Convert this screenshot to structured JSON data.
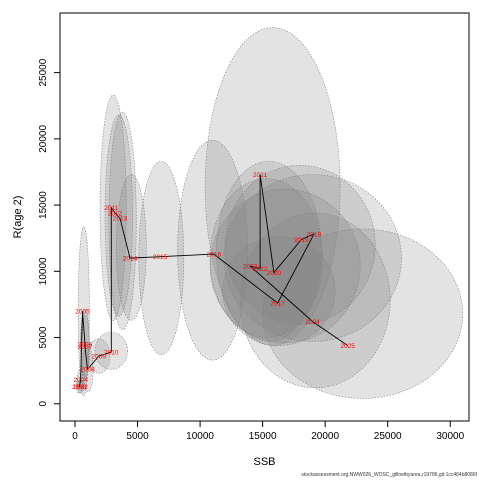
{
  "chart_data": {
    "type": "scatter",
    "xlabel": "SSB",
    "ylabel": "R(age 2)",
    "xlim": [
      -1200,
      31500
    ],
    "ylim": [
      -1300,
      29500
    ],
    "xticks": [
      0,
      5000,
      10000,
      15000,
      20000,
      25000,
      30000
    ],
    "yticks": [
      0,
      5000,
      10000,
      15000,
      20000,
      25000
    ],
    "grid": false,
    "legend": "none",
    "series": [
      {
        "points": [
          {
            "year": "2002",
            "x": 450,
            "y": 1300
          },
          {
            "year": "2003",
            "x": 350,
            "y": 1300
          },
          {
            "year": "2004",
            "x": 450,
            "y": 1800
          },
          {
            "year": "2005",
            "x": 600,
            "y": 7000
          },
          {
            "year": "2006",
            "x": 800,
            "y": 4500
          },
          {
            "year": "2007",
            "x": 800,
            "y": 4300
          },
          {
            "year": "2008",
            "x": 1000,
            "y": 2600
          },
          {
            "year": "2009",
            "x": 1900,
            "y": 3600
          },
          {
            "year": "2010",
            "x": 2900,
            "y": 3900
          },
          {
            "year": "2011",
            "x": 2900,
            "y": 14800
          },
          {
            "year": "2012",
            "x": 3200,
            "y": 14400
          },
          {
            "year": "2013",
            "x": 3600,
            "y": 14000
          },
          {
            "year": "2014",
            "x": 4400,
            "y": 11000
          },
          {
            "year": "2015",
            "x": 6800,
            "y": 11100
          },
          {
            "year": "2016",
            "x": 11100,
            "y": 11300
          },
          {
            "year": "2017",
            "x": 16200,
            "y": 7600
          },
          {
            "year": "2018",
            "x": 19100,
            "y": 12800
          },
          {
            "year": "2019",
            "x": 18100,
            "y": 12400
          },
          {
            "year": "2020",
            "x": 15900,
            "y": 9900
          },
          {
            "year": "2021",
            "x": 14800,
            "y": 17300
          },
          {
            "year": "2022",
            "x": 14800,
            "y": 10200
          },
          {
            "year": "2023",
            "x": 14000,
            "y": 10400
          },
          {
            "year": "2024",
            "x": 19000,
            "y": 6200
          },
          {
            "year": "2025",
            "x": 21800,
            "y": 4400
          }
        ]
      }
    ],
    "ellipses": [
      {
        "year": "2002",
        "cx": 450,
        "cy": 1300,
        "rx": 250,
        "ry": 500
      },
      {
        "year": "2003",
        "cx": 350,
        "cy": 1300,
        "rx": 250,
        "ry": 500
      },
      {
        "year": "2004",
        "cx": 450,
        "cy": 1800,
        "rx": 300,
        "ry": 800
      },
      {
        "year": "2005",
        "cx": 700,
        "cy": 7000,
        "rx": 450,
        "ry": 6400
      },
      {
        "year": "2006",
        "cx": 800,
        "cy": 4500,
        "rx": 350,
        "ry": 2600
      },
      {
        "year": "2007",
        "cx": 800,
        "cy": 4300,
        "rx": 350,
        "ry": 2400
      },
      {
        "year": "2008",
        "cx": 1000,
        "cy": 2600,
        "rx": 450,
        "ry": 1700
      },
      {
        "year": "2009",
        "cx": 1900,
        "cy": 3600,
        "rx": 900,
        "ry": 1300
      },
      {
        "year": "2010",
        "cx": 2900,
        "cy": 4000,
        "rx": 1300,
        "ry": 1400
      },
      {
        "year": "2011",
        "cx": 3050,
        "cy": 14800,
        "rx": 1050,
        "ry": 8500
      },
      {
        "year": "2012",
        "cx": 3500,
        "cy": 14200,
        "rx": 1100,
        "ry": 7600
      },
      {
        "year": "2013",
        "cx": 3800,
        "cy": 13800,
        "rx": 1100,
        "ry": 8200
      },
      {
        "year": "2014",
        "cx": 4500,
        "cy": 11800,
        "rx": 1200,
        "ry": 5500
      },
      {
        "year": "2015",
        "cx": 6900,
        "cy": 11000,
        "rx": 1800,
        "ry": 7300
      },
      {
        "year": "2016",
        "cx": 11000,
        "cy": 11600,
        "rx": 2800,
        "ry": 8300
      },
      {
        "year": "2017",
        "cx": 16300,
        "cy": 8500,
        "rx": 4500,
        "ry": 4100
      },
      {
        "year": "2018",
        "cx": 19000,
        "cy": 11000,
        "rx": 7100,
        "ry": 6300
      },
      {
        "year": "2019",
        "cx": 18000,
        "cy": 12000,
        "rx": 6000,
        "ry": 6000
      },
      {
        "year": "2020",
        "cx": 16800,
        "cy": 10400,
        "rx": 6000,
        "ry": 5800
      },
      {
        "year": "2021",
        "cx": 15800,
        "cy": 16400,
        "rx": 5400,
        "ry": 12000
      },
      {
        "year": "2022",
        "cx": 15500,
        "cy": 11500,
        "rx": 4200,
        "ry": 6800
      },
      {
        "year": "2023",
        "cx": 15300,
        "cy": 11000,
        "rx": 4500,
        "ry": 6000
      },
      {
        "year": "2024",
        "cx": 19200,
        "cy": 7800,
        "rx": 6000,
        "ry": 6600
      },
      {
        "year": "2025",
        "cx": 23000,
        "cy": 6800,
        "rx": 8000,
        "ry": 6400
      }
    ]
  },
  "footer": "stockassessment.org,NWW026_WOSC_gillnetbyarea,r19786,git:1cc464b8086f",
  "colors": {
    "ellipse_fill": "#808080",
    "ellipse_stroke": "#808080",
    "path": "#000000",
    "year_label": "#ff0000"
  }
}
